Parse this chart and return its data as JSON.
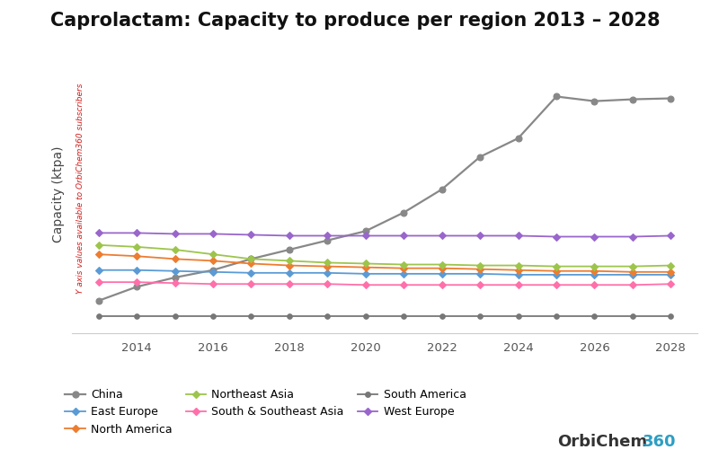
{
  "title": "Caprolactam: Capacity to produce per region 2013 – 2028",
  "ylabel": "Capacity (ktpa)",
  "watermark": "Y axis values available to OrbiChem360 subscribers",
  "years": [
    2013,
    2014,
    2015,
    2016,
    2017,
    2018,
    2019,
    2020,
    2021,
    2022,
    2023,
    2024,
    2025,
    2026,
    2027,
    2028
  ],
  "series": {
    "China": {
      "color": "#888888",
      "marker": "o",
      "linewidth": 1.6,
      "markersize": 5,
      "values": [
        3.5,
        5.0,
        6.0,
        6.8,
        8.0,
        9.0,
        10.0,
        11.0,
        13.0,
        15.5,
        19.0,
        21.0,
        25.5,
        25.0,
        25.2,
        25.3
      ]
    },
    "East Europe": {
      "color": "#5B9BD5",
      "marker": "D",
      "linewidth": 1.3,
      "markersize": 4,
      "values": [
        6.8,
        6.8,
        6.7,
        6.6,
        6.5,
        6.5,
        6.5,
        6.4,
        6.4,
        6.4,
        6.4,
        6.3,
        6.3,
        6.3,
        6.3,
        6.3
      ]
    },
    "North America": {
      "color": "#ED7D31",
      "marker": "D",
      "linewidth": 1.3,
      "markersize": 4,
      "values": [
        8.5,
        8.3,
        8.0,
        7.8,
        7.5,
        7.3,
        7.2,
        7.1,
        7.0,
        7.0,
        6.9,
        6.8,
        6.7,
        6.7,
        6.6,
        6.6
      ]
    },
    "Northeast Asia": {
      "color": "#9DC54C",
      "marker": "D",
      "linewidth": 1.3,
      "markersize": 4,
      "values": [
        9.5,
        9.3,
        9.0,
        8.5,
        8.0,
        7.8,
        7.6,
        7.5,
        7.4,
        7.4,
        7.3,
        7.3,
        7.2,
        7.2,
        7.2,
        7.3
      ]
    },
    "South & Southeast Asia": {
      "color": "#FF70AA",
      "marker": "D",
      "linewidth": 1.3,
      "markersize": 4,
      "values": [
        5.5,
        5.5,
        5.4,
        5.3,
        5.3,
        5.3,
        5.3,
        5.2,
        5.2,
        5.2,
        5.2,
        5.2,
        5.2,
        5.2,
        5.2,
        5.3
      ]
    },
    "South America": {
      "color": "#777777",
      "marker": "o",
      "linewidth": 1.3,
      "markersize": 4,
      "values": [
        1.8,
        1.8,
        1.8,
        1.8,
        1.8,
        1.8,
        1.8,
        1.8,
        1.8,
        1.8,
        1.8,
        1.8,
        1.8,
        1.8,
        1.8,
        1.8
      ]
    },
    "West Europe": {
      "color": "#9966CC",
      "marker": "D",
      "linewidth": 1.3,
      "markersize": 4,
      "values": [
        10.8,
        10.8,
        10.7,
        10.7,
        10.6,
        10.5,
        10.5,
        10.5,
        10.5,
        10.5,
        10.5,
        10.5,
        10.4,
        10.4,
        10.4,
        10.5
      ]
    }
  },
  "ylim": [
    0,
    30
  ],
  "xlim": [
    2012.3,
    2028.7
  ],
  "xticks": [
    2014,
    2016,
    2018,
    2020,
    2022,
    2024,
    2026,
    2028
  ],
  "background_color": "#FFFFFF",
  "grid_color": "#D8D8D8",
  "title_fontsize": 15,
  "ylabel_fontsize": 10,
  "watermark_color": "#CC0000",
  "legend_order": [
    "China",
    "East Europe",
    "North America",
    "Northeast Asia",
    "South & Southeast Asia",
    "South America",
    "West Europe"
  ],
  "legend_ncol": 3,
  "legend_fontsize": 9,
  "branding_orbi": "OrbiChem",
  "branding_360": "360",
  "branding_color_orbi": "#333333",
  "branding_color_360": "#2E9EC2"
}
